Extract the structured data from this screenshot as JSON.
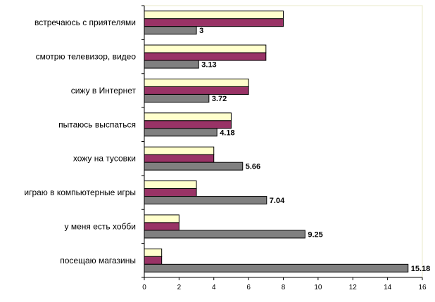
{
  "chart_data": {
    "type": "bar",
    "orientation": "horizontal",
    "categories": [
      "встречаюсь с приятелями",
      "смотрю телевизор, видео",
      "сижу в Интернет",
      "пытаюсь выспаться",
      "хожу на тусовки",
      "играю в компьютерные игры",
      "у меня есть хобби",
      "посещаю магазины"
    ],
    "series": [
      {
        "values": [
          8,
          7,
          6,
          5,
          4,
          3,
          2,
          1
        ],
        "color": "#FFFFCC"
      },
      {
        "values": [
          8,
          7,
          6,
          5,
          4,
          3,
          2,
          1
        ],
        "color": "#993366"
      },
      {
        "values": [
          3,
          3.13,
          3.72,
          4.18,
          5.66,
          7.04,
          9.25,
          15.18
        ],
        "color": "#808080",
        "data_labels": [
          "3",
          "3.13",
          "3.72",
          "4.18",
          "5.66",
          "7.04",
          "9.25",
          "15.18"
        ]
      }
    ],
    "x_ticks": [
      "0",
      "2",
      "4",
      "6",
      "8",
      "10",
      "12",
      "14",
      "16"
    ],
    "xlim": [
      0,
      16
    ],
    "grid": false,
    "legend": "none",
    "title": "",
    "xlabel": "",
    "ylabel": ""
  }
}
